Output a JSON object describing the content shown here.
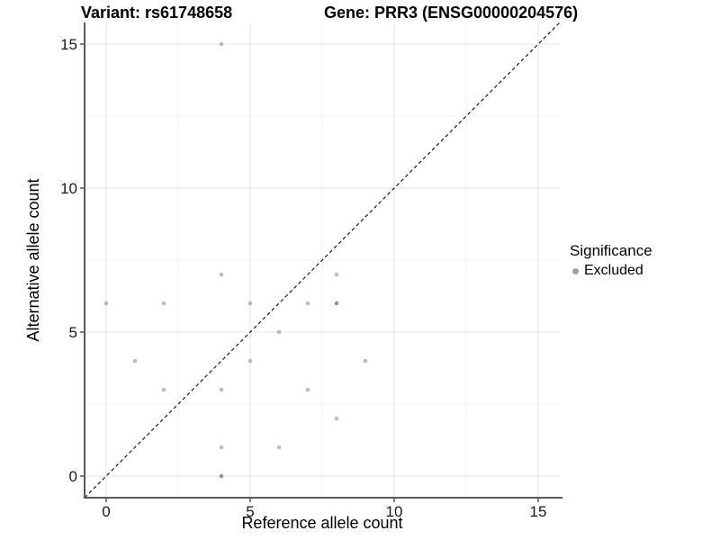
{
  "title": {
    "variant": "Variant: rs61748658",
    "gene": "Gene: PRR3 (ENSG00000204576)"
  },
  "legend": {
    "title": "Significance",
    "items": [
      {
        "label": "Excluded",
        "swatch_color": "#a2a2a2"
      }
    ]
  },
  "chart_data": {
    "type": "scatter",
    "title": "Variant: rs61748658   Gene: PRR3 (ENSG00000204576)",
    "xlabel": "Reference allele count",
    "ylabel": "Alternative allele count",
    "xlim": [
      -0.75,
      15.75
    ],
    "ylim": [
      -0.75,
      15.75
    ],
    "x_major_ticks": [
      0,
      5,
      10,
      15
    ],
    "y_major_ticks": [
      0,
      5,
      10,
      15
    ],
    "x_minor_ticks": [
      2.5,
      7.5,
      12.5
    ],
    "y_minor_ticks": [
      2.5,
      7.5,
      12.5
    ],
    "grid": "major+minor",
    "legend_position": "right",
    "reference_line": {
      "equation": "y = x",
      "style": "dashed",
      "color": "#1a1a1a"
    },
    "series": [
      {
        "name": "Excluded",
        "color": "#696969",
        "opacity": 0.44,
        "points": [
          [
            0,
            6
          ],
          [
            1,
            4
          ],
          [
            2,
            3
          ],
          [
            2,
            6
          ],
          [
            4,
            0
          ],
          [
            4,
            0
          ],
          [
            4,
            1
          ],
          [
            4,
            3
          ],
          [
            4,
            7
          ],
          [
            4,
            15
          ],
          [
            5,
            4
          ],
          [
            5,
            6
          ],
          [
            6,
            1
          ],
          [
            6,
            5
          ],
          [
            7,
            3
          ],
          [
            7,
            6
          ],
          [
            8,
            2
          ],
          [
            8,
            6
          ],
          [
            8,
            6
          ],
          [
            8,
            7
          ],
          [
            9,
            4
          ]
        ]
      }
    ]
  },
  "colors": {
    "grid_major": "#e4e4e4",
    "grid_minor": "#f2f2f2",
    "axis_line": "#595959",
    "tick_label": "#1a1a1a"
  }
}
